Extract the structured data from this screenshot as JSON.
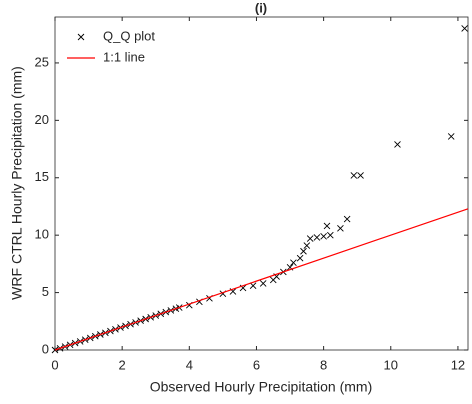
{
  "chart_data": {
    "type": "scatter",
    "title": "(i)",
    "xlabel": "Observed Hourly Precipitation (mm)",
    "ylabel": "WRF CTRL Hourly Precipitation (mm)",
    "series": [
      {
        "name": "Q_Q plot",
        "color": "#000000",
        "marker": "x",
        "x": [
          0,
          0.15,
          0.3,
          0.45,
          0.6,
          0.75,
          0.9,
          1.05,
          1.2,
          1.35,
          1.5,
          1.65,
          1.8,
          1.95,
          2.1,
          2.25,
          2.4,
          2.55,
          2.7,
          2.85,
          3.0,
          3.15,
          3.3,
          3.45,
          3.6,
          3.7,
          4.0,
          4.3,
          4.6,
          5.0,
          5.3,
          5.6,
          5.9,
          6.2,
          6.5,
          6.6,
          6.8,
          7.0,
          7.1,
          7.3,
          7.4,
          7.5,
          7.6,
          7.8,
          8.0,
          8.1,
          8.2,
          8.5,
          8.7,
          8.9,
          9.1,
          10.2,
          11.8,
          12.2
        ],
        "values": [
          0,
          0.15,
          0.3,
          0.45,
          0.6,
          0.75,
          0.9,
          1.05,
          1.2,
          1.35,
          1.5,
          1.65,
          1.8,
          1.95,
          2.1,
          2.25,
          2.4,
          2.55,
          2.7,
          2.85,
          3.0,
          3.15,
          3.3,
          3.45,
          3.6,
          3.7,
          3.9,
          4.2,
          4.5,
          4.9,
          5.1,
          5.4,
          5.6,
          5.8,
          6.1,
          6.4,
          6.8,
          7.2,
          7.6,
          8.0,
          8.6,
          9.1,
          9.7,
          9.8,
          9.9,
          10.8,
          10.0,
          10.6,
          11.4,
          15.2,
          15.2,
          17.9,
          18.6,
          28.0
        ]
      },
      {
        "name": "1:1 line",
        "color": "#ff0000",
        "marker": "line",
        "x": [
          0,
          12.3
        ],
        "values": [
          0,
          12.3
        ]
      }
    ],
    "xlim": [
      0,
      12.3
    ],
    "ylim": [
      0,
      29
    ],
    "xticks": [
      0,
      2,
      4,
      6,
      8,
      10,
      12
    ],
    "yticks": [
      0,
      5,
      10,
      15,
      20,
      25
    ],
    "legend": "upper left",
    "grid": false
  }
}
